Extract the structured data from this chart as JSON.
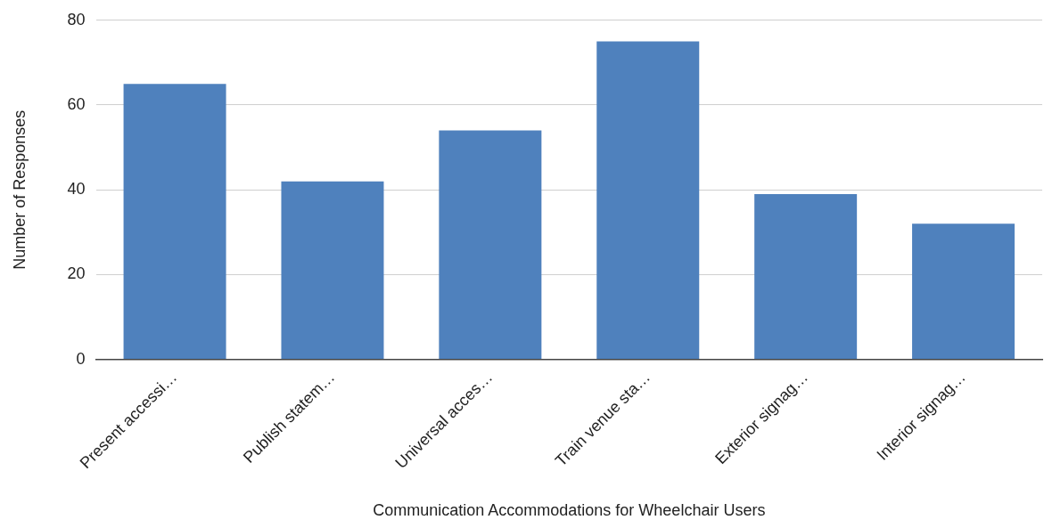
{
  "chart_data": {
    "type": "bar",
    "xlabel": "Communication Accommodations for Wheelchair Users",
    "ylabel": "Number of Responses",
    "categories": [
      "Present accessi…",
      "Publish statem…",
      "Universal acces…",
      "Train venue sta…",
      "Exterior signag…",
      "Interior signag…"
    ],
    "values": [
      65,
      42,
      54,
      75,
      39,
      32
    ],
    "color": "#4f81bd",
    "ylim": [
      0,
      80
    ],
    "yticks": [
      0,
      20,
      40,
      60,
      80
    ],
    "grid": "y",
    "legend": false
  }
}
